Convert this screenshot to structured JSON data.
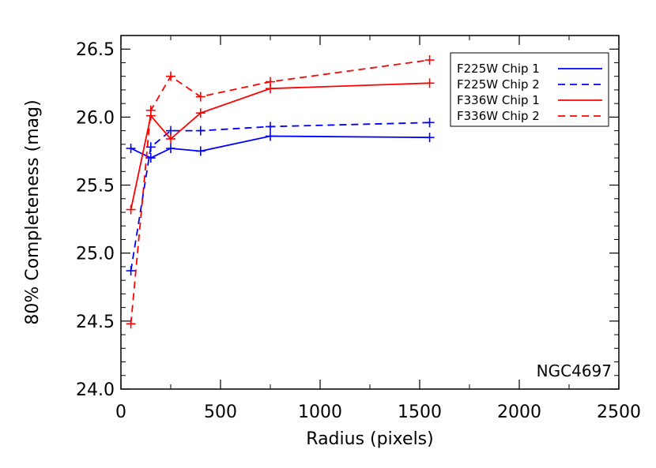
{
  "chart_data": {
    "type": "line",
    "xlabel": "Radius (pixels)",
    "ylabel": "80% Completeness (mag)",
    "xlim": [
      0,
      2500
    ],
    "ylim": [
      24.0,
      26.6
    ],
    "xticks": [
      0,
      500,
      1000,
      1500,
      2000,
      2500
    ],
    "yticks": [
      24.0,
      24.5,
      25.0,
      25.5,
      26.0,
      26.5
    ],
    "xtick_labels": [
      "0",
      "500",
      "1000",
      "1500",
      "2000",
      "2500"
    ],
    "ytick_labels": [
      "24.0",
      "24.5",
      "25.0",
      "25.5",
      "26.0",
      "26.5"
    ],
    "grid": false,
    "legend_position": "top-right",
    "annotation": "NGC4697",
    "series": [
      {
        "name": "F225W Chip 1",
        "color": "#0000ff",
        "dash": "solid",
        "x": [
          50,
          150,
          250,
          400,
          750,
          1550
        ],
        "y": [
          25.77,
          25.7,
          25.77,
          25.75,
          25.86,
          25.85
        ]
      },
      {
        "name": "F225W Chip 2",
        "color": "#0000ff",
        "dash": "dashed",
        "x": [
          50,
          150,
          250,
          400,
          750,
          1550
        ],
        "y": [
          24.87,
          25.78,
          25.9,
          25.9,
          25.93,
          25.96
        ]
      },
      {
        "name": "F336W Chip 1",
        "color": "#ff0000",
        "dash": "solid",
        "x": [
          50,
          150,
          250,
          400,
          750,
          1550
        ],
        "y": [
          25.32,
          26.01,
          25.84,
          26.03,
          26.21,
          26.25
        ]
      },
      {
        "name": "F336W Chip 2",
        "color": "#ff0000",
        "dash": "dashed",
        "x": [
          50,
          150,
          250,
          400,
          750,
          1550
        ],
        "y": [
          24.48,
          26.05,
          26.3,
          26.15,
          26.26,
          26.42
        ]
      }
    ]
  }
}
